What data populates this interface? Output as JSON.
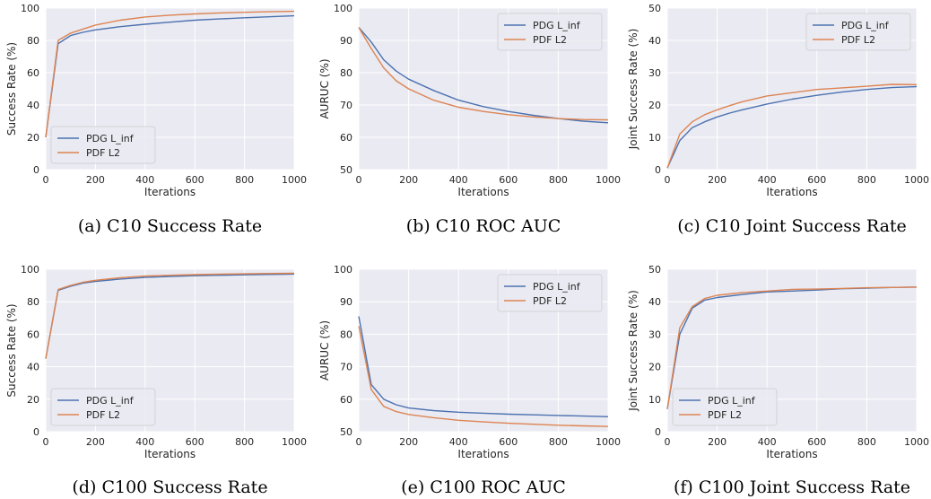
{
  "chart_data": [
    {
      "type": "line",
      "caption": "(a) C10 Success Rate",
      "xlabel": "Iterations",
      "ylabel": "Success Rate (%)",
      "xlim": [
        0,
        1000
      ],
      "ylim": [
        0,
        100
      ],
      "xticks": [
        0,
        200,
        400,
        600,
        800,
        1000
      ],
      "yticks": [
        0,
        20,
        40,
        60,
        80,
        100
      ],
      "grid": true,
      "legend_position": "lower-left",
      "series": [
        {
          "name": "PDG L_inf",
          "x": [
            0,
            50,
            100,
            150,
            200,
            300,
            400,
            500,
            600,
            700,
            800,
            900,
            1000
          ],
          "values": [
            20,
            78,
            83,
            85,
            86.5,
            88.5,
            90,
            91.3,
            92.5,
            93.3,
            94,
            94.6,
            95.2
          ]
        },
        {
          "name": "PDF L2",
          "x": [
            0,
            50,
            100,
            150,
            200,
            300,
            400,
            500,
            600,
            700,
            800,
            900,
            1000
          ],
          "values": [
            20,
            80,
            84.5,
            87,
            89.5,
            92.5,
            94.5,
            95.6,
            96.4,
            97,
            97.4,
            97.7,
            98
          ]
        }
      ]
    },
    {
      "type": "line",
      "caption": "(b) C10 ROC AUC",
      "xlabel": "Iterations",
      "ylabel": "AURUC (%)",
      "xlim": [
        0,
        1000
      ],
      "ylim": [
        50,
        100
      ],
      "xticks": [
        0,
        200,
        400,
        600,
        800,
        1000
      ],
      "yticks": [
        50,
        60,
        70,
        80,
        90,
        100
      ],
      "grid": true,
      "legend_position": "top-right",
      "series": [
        {
          "name": "PDG L_inf",
          "x": [
            0,
            50,
            100,
            150,
            200,
            300,
            400,
            500,
            600,
            700,
            800,
            900,
            1000
          ],
          "values": [
            94,
            89.5,
            84,
            80.5,
            78,
            74.5,
            71.5,
            69.5,
            68,
            66.8,
            65.8,
            65,
            64.5
          ]
        },
        {
          "name": "PDF L2",
          "x": [
            0,
            50,
            100,
            150,
            200,
            300,
            400,
            500,
            600,
            700,
            800,
            900,
            1000
          ],
          "values": [
            94,
            87.5,
            81.5,
            77.5,
            75,
            71.5,
            69.3,
            68,
            67,
            66.3,
            65.8,
            65.5,
            65.4
          ]
        }
      ]
    },
    {
      "type": "line",
      "caption": "(c) C10 Joint Success Rate",
      "xlabel": "Iterations",
      "ylabel": "Joint Success Rate (%)",
      "xlim": [
        0,
        1000
      ],
      "ylim": [
        0,
        50
      ],
      "xticks": [
        0,
        200,
        400,
        600,
        800,
        1000
      ],
      "yticks": [
        0,
        10,
        20,
        30,
        40,
        50
      ],
      "grid": true,
      "legend_position": "top-right",
      "series": [
        {
          "name": "PDG L_inf",
          "x": [
            0,
            50,
            100,
            150,
            200,
            250,
            300,
            400,
            500,
            600,
            700,
            800,
            900,
            1000
          ],
          "values": [
            0.5,
            9,
            13,
            14.8,
            16.3,
            17.5,
            18.5,
            20.3,
            21.8,
            23,
            24,
            24.8,
            25.4,
            25.7
          ]
        },
        {
          "name": "PDF L2",
          "x": [
            0,
            50,
            100,
            150,
            200,
            250,
            300,
            400,
            500,
            600,
            700,
            800,
            900,
            1000
          ],
          "values": [
            0.5,
            11,
            14.8,
            17,
            18.5,
            19.8,
            21,
            22.8,
            23.8,
            24.8,
            25.3,
            25.8,
            26.4,
            26.3
          ]
        }
      ]
    },
    {
      "type": "line",
      "caption": "(d) C100 Success Rate",
      "xlabel": "Iterations",
      "ylabel": "Success Rate (%)",
      "xlim": [
        0,
        1000
      ],
      "ylim": [
        0,
        100
      ],
      "xticks": [
        0,
        200,
        400,
        600,
        800,
        1000
      ],
      "yticks": [
        0,
        20,
        40,
        60,
        80,
        100
      ],
      "grid": true,
      "legend_position": "lower-left",
      "series": [
        {
          "name": "PDG L_inf",
          "x": [
            0,
            50,
            100,
            150,
            200,
            300,
            400,
            500,
            600,
            700,
            800,
            900,
            1000
          ],
          "values": [
            45,
            87,
            89.5,
            91.5,
            92.5,
            94,
            95,
            95.6,
            96,
            96.3,
            96.6,
            96.8,
            97
          ]
        },
        {
          "name": "PDF L2",
          "x": [
            0,
            50,
            100,
            150,
            200,
            300,
            400,
            500,
            600,
            700,
            800,
            900,
            1000
          ],
          "values": [
            45,
            87.5,
            90,
            92,
            93.2,
            94.8,
            95.8,
            96.3,
            96.7,
            97,
            97.2,
            97.4,
            97.5
          ]
        }
      ]
    },
    {
      "type": "line",
      "caption": "(e) C100 ROC AUC",
      "xlabel": "Iterations",
      "ylabel": "AURUC (%)",
      "xlim": [
        0,
        1000
      ],
      "ylim": [
        50,
        100
      ],
      "xticks": [
        0,
        200,
        400,
        600,
        800,
        1000
      ],
      "yticks": [
        50,
        60,
        70,
        80,
        90,
        100
      ],
      "grid": true,
      "legend_position": "top-right",
      "series": [
        {
          "name": "PDG L_inf",
          "x": [
            0,
            50,
            100,
            150,
            200,
            300,
            400,
            500,
            600,
            700,
            800,
            900,
            1000
          ],
          "values": [
            85.5,
            64.5,
            60,
            58.3,
            57.3,
            56.5,
            56,
            55.7,
            55.4,
            55.2,
            55,
            54.8,
            54.6
          ]
        },
        {
          "name": "PDF L2",
          "x": [
            0,
            50,
            100,
            150,
            200,
            300,
            400,
            500,
            600,
            700,
            800,
            900,
            1000
          ],
          "values": [
            82.5,
            63,
            57.8,
            56.2,
            55.3,
            54.3,
            53.5,
            53,
            52.6,
            52.3,
            52,
            51.8,
            51.6
          ]
        }
      ]
    },
    {
      "type": "line",
      "caption": "(f) C100 Joint Success Rate",
      "xlabel": "Iterations",
      "ylabel": "Joint Success Rate (%)",
      "xlim": [
        0,
        1000
      ],
      "ylim": [
        0,
        50
      ],
      "xticks": [
        0,
        200,
        400,
        600,
        800,
        1000
      ],
      "yticks": [
        0,
        10,
        20,
        30,
        40,
        50
      ],
      "grid": true,
      "legend_position": "lower-left",
      "series": [
        {
          "name": "PDG L_inf",
          "x": [
            0,
            50,
            100,
            150,
            200,
            300,
            400,
            500,
            600,
            700,
            800,
            900,
            1000
          ],
          "values": [
            7,
            30,
            38,
            40.5,
            41.3,
            42.2,
            43,
            43.3,
            43.6,
            44,
            44.2,
            44.4,
            44.5
          ]
        },
        {
          "name": "PDF L2",
          "x": [
            0,
            50,
            100,
            150,
            200,
            300,
            400,
            500,
            600,
            700,
            800,
            900,
            1000
          ],
          "values": [
            7,
            32,
            38.5,
            41,
            42,
            42.8,
            43.3,
            43.8,
            43.9,
            44.1,
            44.3,
            44.4,
            44.5
          ]
        }
      ]
    }
  ],
  "colors": {
    "PDG L_inf": "#4c72b0",
    "PDF L2": "#dd8452",
    "plot_background": "#eaeaf2",
    "grid": "#ffffff"
  }
}
